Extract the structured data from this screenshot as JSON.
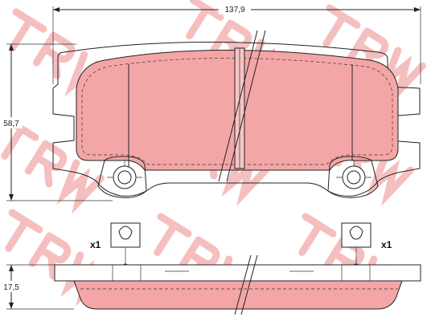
{
  "dimensions": {
    "width": "137,9",
    "height": "58,7",
    "thickness": "17,5"
  },
  "quantity": {
    "left": "x1",
    "right": "x1"
  },
  "colors": {
    "pad_fill": "#f4a6a6",
    "pad_fill_light": "#f7c4c4",
    "watermark": "#f3b4b4",
    "outline": "#222222"
  }
}
